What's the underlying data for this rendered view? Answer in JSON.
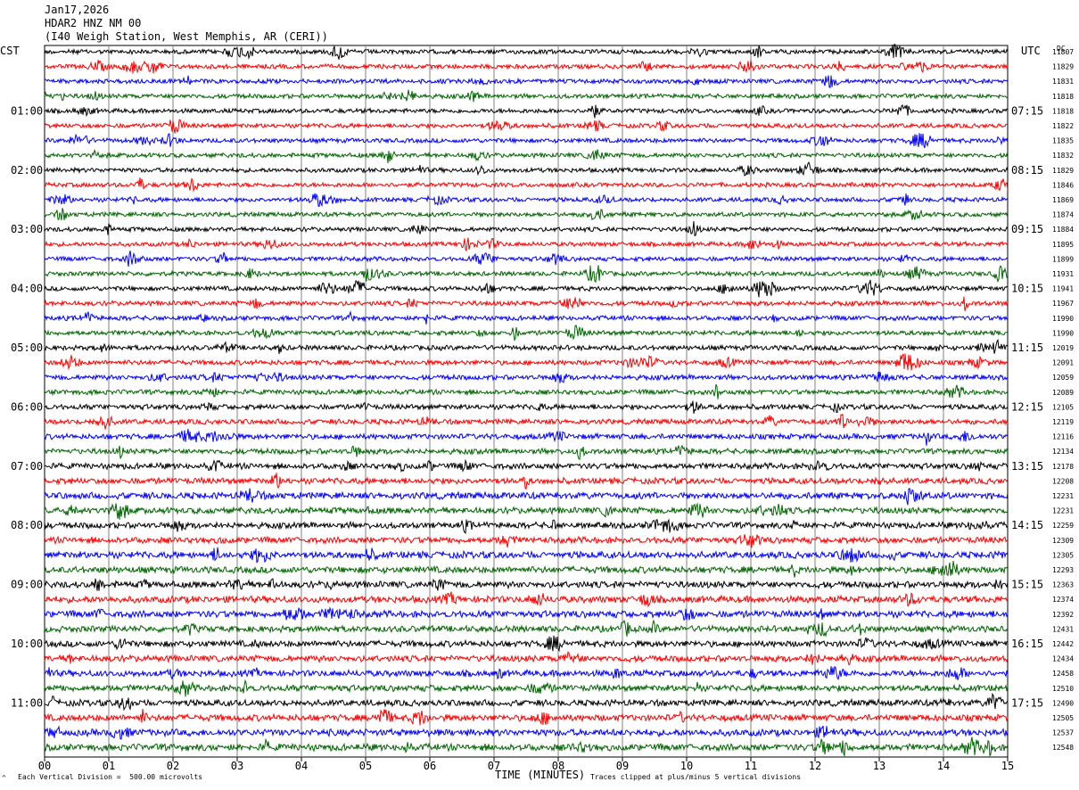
{
  "header": {
    "date": "Jan17,2026",
    "station": "HDAR2 HNZ NM 00",
    "location": "(I40 Weigh Station, West Memphis, AR (CERI))"
  },
  "tz_left": "CST",
  "tz_right": "UTC",
  "dc_label": "DC",
  "footer": {
    "xlabel": "TIME (MINUTES)",
    "scale_note": "Each Vertical Division =  500.00 microvolts",
    "clip_note": "Traces clipped at plus/minus 5 vertical divisions",
    "corner_mark": "^"
  },
  "colors": {
    "rows": [
      "#000000",
      "#ff0000",
      "#0000ff",
      "#006400"
    ],
    "grid": "#808080"
  },
  "chart_data": {
    "type": "line",
    "title": "",
    "xlabel": "TIME (MINUTES)",
    "xlim": [
      0,
      15
    ],
    "x_ticks": [
      "00",
      "01",
      "02",
      "03",
      "04",
      "05",
      "06",
      "07",
      "08",
      "09",
      "10",
      "11",
      "12",
      "13",
      "14",
      "15"
    ],
    "row_count": 48,
    "rows_per_hour": 4,
    "left_hour_labels": [
      "01:00",
      "02:00",
      "03:00",
      "04:00",
      "05:00",
      "06:00",
      "07:00",
      "08:00",
      "09:00",
      "10:00",
      "11:00"
    ],
    "right_hour_labels": [
      "07:15",
      "08:15",
      "09:15",
      "10:15",
      "11:15",
      "12:15",
      "13:15",
      "14:15",
      "15:15",
      "16:15",
      "17:15"
    ],
    "hour_label_start_row": 4,
    "dc_offsets": [
      "11807",
      "11829",
      "11831",
      "11818",
      "11818",
      "11822",
      "11835",
      "11832",
      "11829",
      "11846",
      "11869",
      "11874",
      "11884",
      "11895",
      "11899",
      "11931",
      "11941",
      "11967",
      "11990",
      "11990",
      "12019",
      "12091",
      "12059",
      "12089",
      "12105",
      "12119",
      "12116",
      "12134",
      "12178",
      "12208",
      "12231",
      "12231",
      "12259",
      "12309",
      "12305",
      "12293",
      "12363",
      "12374",
      "12392",
      "12431",
      "12442",
      "12434",
      "12458",
      "12510",
      "12490",
      "12505",
      "12537",
      "12548"
    ],
    "amplitude_level": [
      0.5,
      0.5,
      0.5,
      0.5,
      0.5,
      0.5,
      0.5,
      0.5,
      0.5,
      0.5,
      0.5,
      0.5,
      0.5,
      0.5,
      0.5,
      0.5,
      0.55,
      0.55,
      0.55,
      0.55,
      0.6,
      0.6,
      0.6,
      0.6,
      0.65,
      0.65,
      0.7,
      0.7,
      0.8,
      0.85,
      0.95,
      0.9,
      0.85,
      0.9,
      1.0,
      0.95,
      0.95,
      1.0,
      1.0,
      0.9,
      0.9,
      0.9,
      0.9,
      0.9,
      0.9,
      0.95,
      1.0,
      1.0
    ]
  }
}
